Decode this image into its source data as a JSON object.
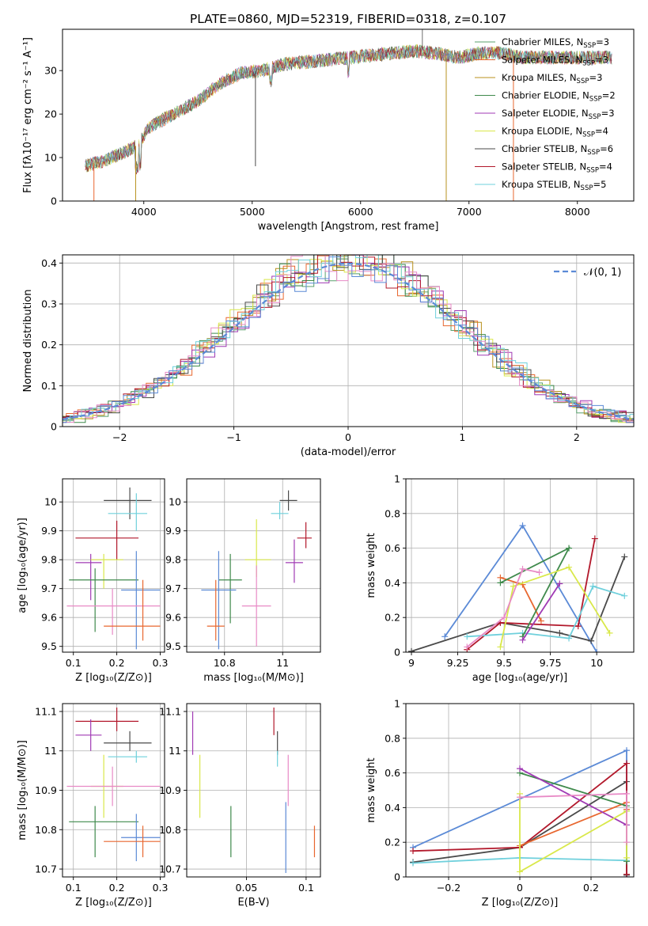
{
  "title": "PLATE=0860, MJD=52319, FIBERID=0318, z=0.107",
  "chart_data": [
    {
      "id": "spectrum",
      "type": "line",
      "xlabel": "wavelength [Angstrom, rest frame]",
      "ylabel": "Flux [fλ10⁻¹⁷ erg cm⁻² s⁻¹ A⁻¹]",
      "xlim": [
        3250,
        8520
      ],
      "ylim": [
        0,
        39.5
      ],
      "xticks": [
        4000,
        5000,
        6000,
        7000,
        8000
      ],
      "yticks": [
        0,
        10,
        20,
        30
      ],
      "legend_position": "right",
      "continuum": {
        "x": [
          3450,
          3600,
          3800,
          3950,
          4050,
          4200,
          4350,
          4500,
          4700,
          4900,
          5100,
          5300,
          5500,
          5700,
          5900,
          6100,
          6300,
          6500,
          6700,
          6900,
          7100,
          7300,
          7500,
          7700,
          7900,
          8100,
          8300
        ],
        "y": [
          8,
          9,
          11,
          13,
          17,
          19,
          21,
          23,
          27,
          29.5,
          30,
          31.5,
          32,
          32.5,
          33,
          33.5,
          34,
          34.5,
          34,
          33,
          34,
          34,
          33,
          33,
          33,
          33,
          33
        ]
      },
      "series": [
        {
          "name": "Chabrier MILES, N",
          "sub": "SSP",
          "suffix": "=3",
          "color": "#5aa06e"
        },
        {
          "name": "Salpeter MILES, N",
          "sub": "SSP",
          "suffix": "=3",
          "color": "#e8672f"
        },
        {
          "name": "Kroupa MILES, N",
          "sub": "SSP",
          "suffix": "=3",
          "color": "#b8911e"
        },
        {
          "name": "Chabrier ELODIE, N",
          "sub": "SSP",
          "suffix": "=2",
          "color": "#3f8a4c"
        },
        {
          "name": "Salpeter ELODIE, N",
          "sub": "SSP",
          "suffix": "=3",
          "color": "#a03ab4"
        },
        {
          "name": "Kroupa ELODIE, N",
          "sub": "SSP",
          "suffix": "=4",
          "color": "#d9e84a"
        },
        {
          "name": "Chabrier STELIB, N",
          "sub": "SSP",
          "suffix": "=6",
          "color": "#4a4a4a"
        },
        {
          "name": "Salpeter STELIB, N",
          "sub": "SSP",
          "suffix": "=4",
          "color": "#b2182b"
        },
        {
          "name": "Kroupa STELIB, N",
          "sub": "SSP",
          "suffix": "=5",
          "color": "#6fd0dc"
        }
      ]
    },
    {
      "id": "residuals",
      "type": "line",
      "xlabel": "(data-model)/error",
      "ylabel": "Normed distribution",
      "xlim": [
        -2.5,
        2.5
      ],
      "ylim": [
        0,
        0.42
      ],
      "xticks": [
        -2,
        -1,
        0,
        1,
        2
      ],
      "yticks": [
        0.0,
        0.1,
        0.2,
        0.3,
        0.4
      ],
      "grid": true,
      "legend": "𝒩(0, 1)",
      "legend_position": "top-right",
      "normal_curve": {
        "mu": 0,
        "sigma": 1,
        "color": "#5b8ad6"
      },
      "histogram_bin_width": 0.1,
      "series_colors": [
        "#5aa06e",
        "#e8672f",
        "#b8911e",
        "#3f8a4c",
        "#a03ab4",
        "#d9e84a",
        "#4a4a4a",
        "#b2182b",
        "#6fd0dc",
        "#e88ac6",
        "#5b8ad6"
      ]
    },
    {
      "id": "age-vs-Z",
      "type": "scatter",
      "xlabel": "Z [log₁₀(Z/Z⊙)]",
      "ylabel": "age  [log₁₀(age/yr)]",
      "xlim": [
        0.075,
        0.31
      ],
      "ylim": [
        9.48,
        10.08
      ],
      "xticks": [
        0.1,
        0.2,
        0.3
      ],
      "yticks": [
        9.5,
        9.6,
        9.7,
        9.8,
        9.9,
        10.0
      ],
      "grid": true,
      "points": [
        {
          "x": 0.23,
          "y": 10.005,
          "xerr": [
            0.17,
            0.28
          ],
          "yerr": [
            9.94,
            10.05
          ],
          "color": "#4a4a4a"
        },
        {
          "x": 0.245,
          "y": 9.96,
          "xerr": [
            0.18,
            0.27
          ],
          "yerr": [
            9.9,
            10.03
          ],
          "color": "#6fd0dc"
        },
        {
          "x": 0.2,
          "y": 9.875,
          "xerr": [
            0.105,
            0.25
          ],
          "yerr": [
            9.8,
            9.935
          ],
          "color": "#b2182b"
        },
        {
          "x": 0.14,
          "y": 9.79,
          "xerr": [
            0.105,
            0.165
          ],
          "yerr": [
            9.66,
            9.82
          ],
          "color": "#a03ab4"
        },
        {
          "x": 0.17,
          "y": 9.8,
          "xerr": [
            0.14,
            0.215
          ],
          "yerr": [
            9.7,
            9.82
          ],
          "color": "#d9e84a"
        },
        {
          "x": 0.15,
          "y": 9.73,
          "xerr": [
            0.09,
            0.25
          ],
          "yerr": [
            9.55,
            9.77
          ],
          "color": "#3f8a4c"
        },
        {
          "x": 0.245,
          "y": 9.695,
          "xerr": [
            0.21,
            0.3
          ],
          "yerr": [
            9.49,
            9.83
          ],
          "color": "#5b8ad6"
        },
        {
          "x": 0.19,
          "y": 9.64,
          "xerr": [
            0.085,
            0.3
          ],
          "yerr": [
            9.54,
            9.7
          ],
          "color": "#e88ac6"
        },
        {
          "x": 0.26,
          "y": 9.57,
          "xerr": [
            0.17,
            0.3
          ],
          "yerr": [
            9.52,
            9.73
          ],
          "color": "#e8672f"
        }
      ]
    },
    {
      "id": "age-vs-mass",
      "type": "scatter",
      "xlabel": "mass [log₁₀(M/M⊙)]",
      "ylabel": "",
      "xlim": [
        10.67,
        11.13
      ],
      "ylim": [
        9.48,
        10.08
      ],
      "xticks": [
        10.8,
        11.0
      ],
      "yticks": [
        9.5,
        9.6,
        9.7,
        9.8,
        9.9,
        10.0
      ],
      "grid": true,
      "points": [
        {
          "x": 11.02,
          "y": 10.005,
          "xerr": [
            10.99,
            11.05
          ],
          "yerr": [
            9.97,
            10.04
          ],
          "color": "#4a4a4a"
        },
        {
          "x": 10.99,
          "y": 9.96,
          "xerr": [
            10.96,
            11.02
          ],
          "yerr": [
            9.94,
            10.0
          ],
          "color": "#6fd0dc"
        },
        {
          "x": 11.08,
          "y": 9.875,
          "xerr": [
            11.05,
            11.1
          ],
          "yerr": [
            9.84,
            9.93
          ],
          "color": "#b2182b"
        },
        {
          "x": 11.04,
          "y": 9.79,
          "xerr": [
            11.01,
            11.07
          ],
          "yerr": [
            9.72,
            9.87
          ],
          "color": "#a03ab4"
        },
        {
          "x": 10.91,
          "y": 9.8,
          "xerr": [
            10.87,
            10.96
          ],
          "yerr": [
            9.74,
            9.94
          ],
          "color": "#d9e84a"
        },
        {
          "x": 10.82,
          "y": 9.73,
          "xerr": [
            10.78,
            10.86
          ],
          "yerr": [
            9.58,
            9.82
          ],
          "color": "#3f8a4c"
        },
        {
          "x": 10.78,
          "y": 9.695,
          "xerr": [
            10.72,
            10.84
          ],
          "yerr": [
            9.49,
            9.83
          ],
          "color": "#5b8ad6"
        },
        {
          "x": 10.91,
          "y": 9.64,
          "xerr": [
            10.86,
            10.96
          ],
          "yerr": [
            9.5,
            9.78
          ],
          "color": "#e88ac6"
        },
        {
          "x": 10.77,
          "y": 9.57,
          "xerr": [
            10.74,
            10.8
          ],
          "yerr": [
            9.52,
            9.73
          ],
          "color": "#e8672f"
        }
      ]
    },
    {
      "id": "mass-weight-vs-age",
      "type": "line",
      "xlabel": "age  [log₁₀(age/yr)]",
      "ylabel": "mass weight",
      "xlim": [
        8.97,
        10.2
      ],
      "ylim": [
        0,
        1.0
      ],
      "xticks": [
        9.0,
        9.25,
        9.5,
        9.75,
        10.0
      ],
      "yticks": [
        0.0,
        0.2,
        0.4,
        0.6,
        0.8,
        1.0
      ],
      "grid": true,
      "series": [
        {
          "color": "#5b8ad6",
          "x": [
            9.18,
            9.6,
            10.0
          ],
          "y": [
            0.09,
            0.73,
            0.0
          ]
        },
        {
          "color": "#4a4a4a",
          "x": [
            9.0,
            9.48,
            9.8,
            9.97,
            10.15
          ],
          "y": [
            0.005,
            0.17,
            0.11,
            0.065,
            0.55
          ]
        },
        {
          "color": "#b2182b",
          "x": [
            9.3,
            9.48,
            9.9,
            9.99
          ],
          "y": [
            0.015,
            0.17,
            0.15,
            0.655
          ]
        },
        {
          "color": "#6fd0dc",
          "x": [
            9.3,
            9.6,
            9.85,
            9.98,
            10.15
          ],
          "y": [
            0.09,
            0.11,
            0.08,
            0.38,
            0.325
          ]
        },
        {
          "color": "#e8672f",
          "x": [
            9.48,
            9.6,
            9.7
          ],
          "y": [
            0.43,
            0.39,
            0.18
          ]
        },
        {
          "color": "#3f8a4c",
          "x": [
            9.48,
            9.85,
            9.6
          ],
          "y": [
            0.4,
            0.6,
            0.09
          ]
        },
        {
          "color": "#a03ab4",
          "x": [
            9.6,
            9.8
          ],
          "y": [
            0.07,
            0.395
          ]
        },
        {
          "color": "#d9e84a",
          "x": [
            9.48,
            9.55,
            9.85,
            10.07
          ],
          "y": [
            0.03,
            0.38,
            0.49,
            0.11
          ]
        },
        {
          "color": "#e88ac6",
          "x": [
            9.3,
            9.5,
            9.6,
            9.69
          ],
          "y": [
            0.03,
            0.2,
            0.48,
            0.46
          ]
        }
      ]
    },
    {
      "id": "mass-vs-Z",
      "type": "scatter",
      "xlabel": "Z [log₁₀(Z/Z⊙)]",
      "ylabel": "mass [log₁₀(M/M⊙)]",
      "xlim": [
        0.075,
        0.31
      ],
      "ylim": [
        10.68,
        11.12
      ],
      "xticks": [
        0.1,
        0.2,
        0.3
      ],
      "yticks": [
        10.7,
        10.8,
        10.9,
        11.0,
        11.1
      ],
      "grid": true,
      "points": [
        {
          "x": 0.2,
          "y": 11.075,
          "xerr": [
            0.105,
            0.25
          ],
          "yerr": [
            11.05,
            11.11
          ],
          "color": "#b2182b"
        },
        {
          "x": 0.14,
          "y": 11.04,
          "xerr": [
            0.105,
            0.165
          ],
          "yerr": [
            11.0,
            11.08
          ],
          "color": "#a03ab4"
        },
        {
          "x": 0.23,
          "y": 11.02,
          "xerr": [
            0.17,
            0.28
          ],
          "yerr": [
            11.0,
            11.05
          ],
          "color": "#4a4a4a"
        },
        {
          "x": 0.245,
          "y": 10.985,
          "xerr": [
            0.18,
            0.27
          ],
          "yerr": [
            10.97,
            11.0
          ],
          "color": "#6fd0dc"
        },
        {
          "x": 0.17,
          "y": 10.91,
          "xerr": [
            0.14,
            0.215
          ],
          "yerr": [
            10.83,
            10.99
          ],
          "color": "#d9e84a"
        },
        {
          "x": 0.19,
          "y": 10.91,
          "xerr": [
            0.085,
            0.3
          ],
          "yerr": [
            10.86,
            10.96
          ],
          "color": "#e88ac6"
        },
        {
          "x": 0.15,
          "y": 10.82,
          "xerr": [
            0.09,
            0.25
          ],
          "yerr": [
            10.73,
            10.86
          ],
          "color": "#3f8a4c"
        },
        {
          "x": 0.245,
          "y": 10.78,
          "xerr": [
            0.21,
            0.3
          ],
          "yerr": [
            10.72,
            10.84
          ],
          "color": "#5b8ad6"
        },
        {
          "x": 0.26,
          "y": 10.77,
          "xerr": [
            0.17,
            0.3
          ],
          "yerr": [
            10.73,
            10.81
          ],
          "color": "#e8672f"
        }
      ]
    },
    {
      "id": "mass-vs-EBV",
      "type": "scatter",
      "xlabel": "E(B-V)",
      "ylabel": "",
      "xlim": [
        0.0,
        0.112
      ],
      "ylim": [
        10.68,
        11.12
      ],
      "xticks": [
        0.05,
        0.1
      ],
      "yticks": [
        10.7,
        10.8,
        10.9,
        11.0,
        11.1
      ],
      "grid": true,
      "points": [
        {
          "x": 0.005,
          "y": 11.04,
          "xerr": [
            0.005,
            0.005
          ],
          "yerr": [
            10.99,
            11.1
          ],
          "color": "#a03ab4"
        },
        {
          "x": 0.073,
          "y": 11.075,
          "xerr": [
            0.073,
            0.073
          ],
          "yerr": [
            11.04,
            11.11
          ],
          "color": "#b2182b"
        },
        {
          "x": 0.076,
          "y": 11.02,
          "xerr": [
            0.076,
            0.076
          ],
          "yerr": [
            10.99,
            11.05
          ],
          "color": "#4a4a4a"
        },
        {
          "x": 0.076,
          "y": 10.98,
          "xerr": [
            0.076,
            0.076
          ],
          "yerr": [
            10.96,
            11.0
          ],
          "color": "#6fd0dc"
        },
        {
          "x": 0.011,
          "y": 10.91,
          "xerr": [
            0.011,
            0.011
          ],
          "yerr": [
            10.83,
            10.99
          ],
          "color": "#d9e84a"
        },
        {
          "x": 0.085,
          "y": 10.91,
          "xerr": [
            0.085,
            0.085
          ],
          "yerr": [
            10.86,
            10.99
          ],
          "color": "#e88ac6"
        },
        {
          "x": 0.037,
          "y": 10.8,
          "xerr": [
            0.037,
            0.037
          ],
          "yerr": [
            10.73,
            10.86
          ],
          "color": "#3f8a4c"
        },
        {
          "x": 0.083,
          "y": 10.78,
          "xerr": [
            0.083,
            0.083
          ],
          "yerr": [
            10.69,
            10.87
          ],
          "color": "#5b8ad6"
        },
        {
          "x": 0.107,
          "y": 10.77,
          "xerr": [
            0.107,
            0.107
          ],
          "yerr": [
            10.73,
            10.81
          ],
          "color": "#e8672f"
        }
      ]
    },
    {
      "id": "mass-weight-vs-Z",
      "type": "line",
      "xlabel": "Z [log₁₀(Z/Z⊙)]",
      "ylabel": "mass weight",
      "xlim": [
        -0.32,
        0.32
      ],
      "ylim": [
        0,
        1.0
      ],
      "xticks": [
        -0.2,
        0.0,
        0.2
      ],
      "yticks": [
        0.0,
        0.2,
        0.4,
        0.6,
        0.8,
        1.0
      ],
      "grid": true,
      "series": [
        {
          "color": "#5b8ad6",
          "x": [
            -0.3,
            0.3,
            0.3
          ],
          "y": [
            0.17,
            0.73,
            0.0
          ]
        },
        {
          "color": "#4a4a4a",
          "x": [
            -0.3,
            0.0,
            0.3,
            0.3
          ],
          "y": [
            0.085,
            0.17,
            0.55,
            0.01
          ]
        },
        {
          "color": "#b2182b",
          "x": [
            -0.3,
            0.0,
            0.3,
            0.3
          ],
          "y": [
            0.15,
            0.17,
            0.655,
            0.015
          ]
        },
        {
          "color": "#6fd0dc",
          "x": [
            -0.3,
            0.0,
            0.3,
            0.3
          ],
          "y": [
            0.08,
            0.11,
            0.095,
            0.38
          ]
        },
        {
          "color": "#e8672f",
          "x": [
            0.0,
            0.3,
            0.3
          ],
          "y": [
            0.18,
            0.43,
            0.39
          ]
        },
        {
          "color": "#3f8a4c",
          "x": [
            0.0,
            0.3,
            0.3
          ],
          "y": [
            0.6,
            0.41,
            0.09
          ]
        },
        {
          "color": "#a03ab4",
          "x": [
            0.0,
            0.3
          ],
          "y": [
            0.625,
            0.3
          ]
        },
        {
          "color": "#d9e84a",
          "x": [
            0.0,
            0.0,
            0.3,
            0.3
          ],
          "y": [
            0.48,
            0.03,
            0.38,
            0.11
          ]
        },
        {
          "color": "#e88ac6",
          "x": [
            0.0,
            0.3,
            0.3
          ],
          "y": [
            0.46,
            0.48,
            0.2
          ]
        }
      ]
    }
  ]
}
